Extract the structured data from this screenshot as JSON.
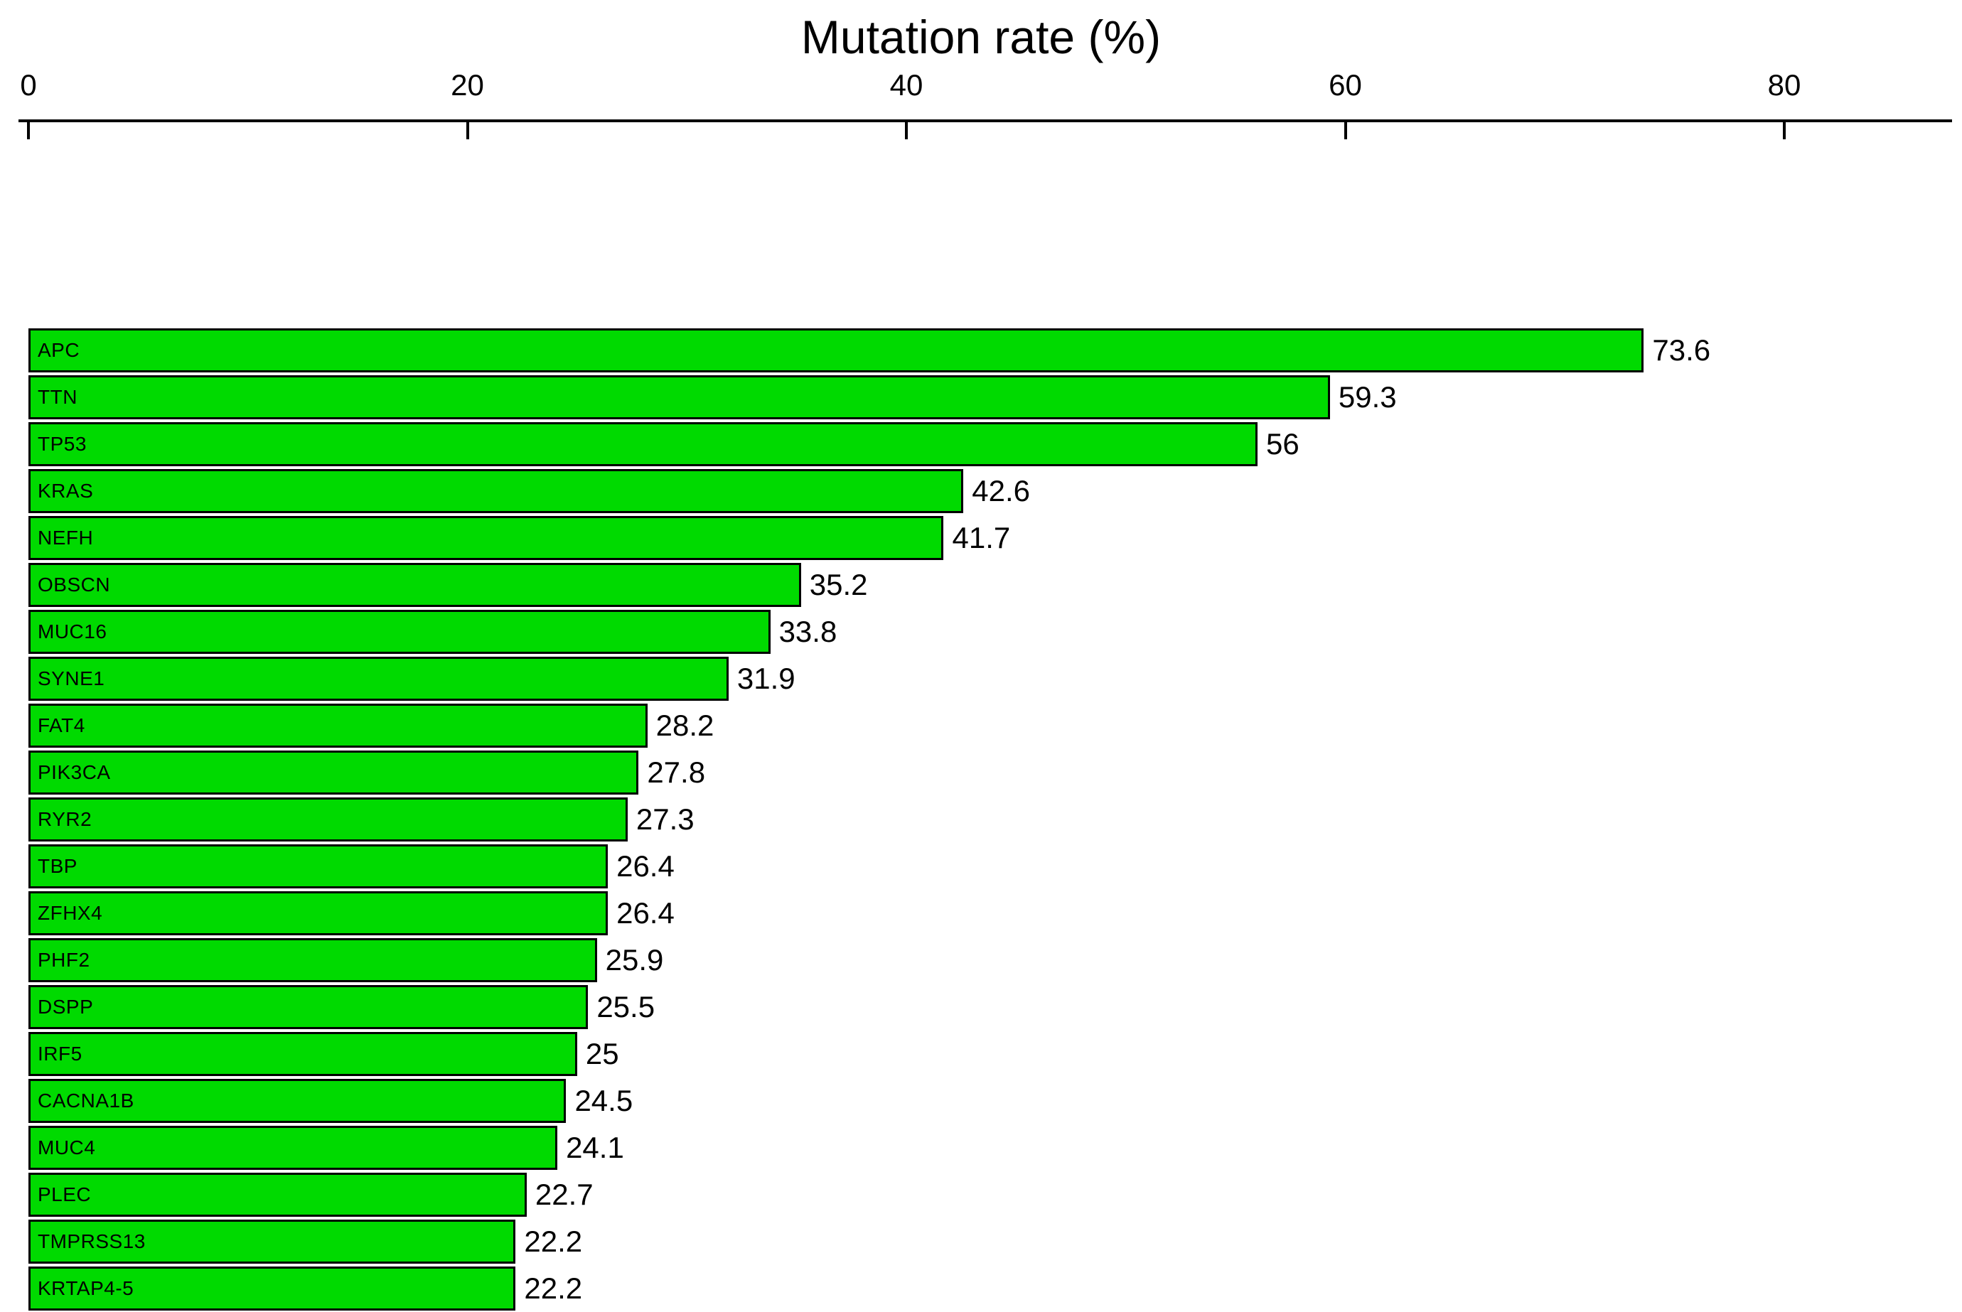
{
  "chart_data": {
    "type": "bar",
    "orientation": "horizontal",
    "title": "Mutation rate (%)",
    "xlabel": "Mutation rate (%)",
    "ylabel": "",
    "categories": [
      "APC",
      "TTN",
      "TP53",
      "KRAS",
      "NEFH",
      "OBSCN",
      "MUC16",
      "SYNE1",
      "FAT4",
      "PIK3CA",
      "RYR2",
      "TBP",
      "ZFHX4",
      "PHF2",
      "DSPP",
      "IRF5",
      "CACNA1B",
      "MUC4",
      "PLEC",
      "TMPRSS13",
      "KRTAP4-5"
    ],
    "values": [
      73.6,
      59.3,
      56,
      42.6,
      41.7,
      35.2,
      33.8,
      31.9,
      28.2,
      27.8,
      27.3,
      26.4,
      26.4,
      25.9,
      25.5,
      25,
      24.5,
      24.1,
      22.7,
      22.2,
      22.2
    ],
    "value_labels": [
      "73.6",
      "59.3",
      "56",
      "42.6",
      "41.7",
      "35.2",
      "33.8",
      "31.9",
      "28.2",
      "27.8",
      "27.3",
      "26.4",
      "26.4",
      "25.9",
      "25.5",
      "25",
      "24.5",
      "24.1",
      "22.7",
      "22.2",
      "22.2"
    ],
    "axis": {
      "position": "top",
      "ticks": [
        0,
        20,
        40,
        60,
        80
      ],
      "tick_labels": [
        "0",
        "20",
        "40",
        "60",
        "80"
      ],
      "min": 0,
      "max": 88
    },
    "bar_color": "#00da00",
    "bar_border_color": "#000000",
    "grid": false,
    "legend": false,
    "background_color": "#ffffff"
  }
}
